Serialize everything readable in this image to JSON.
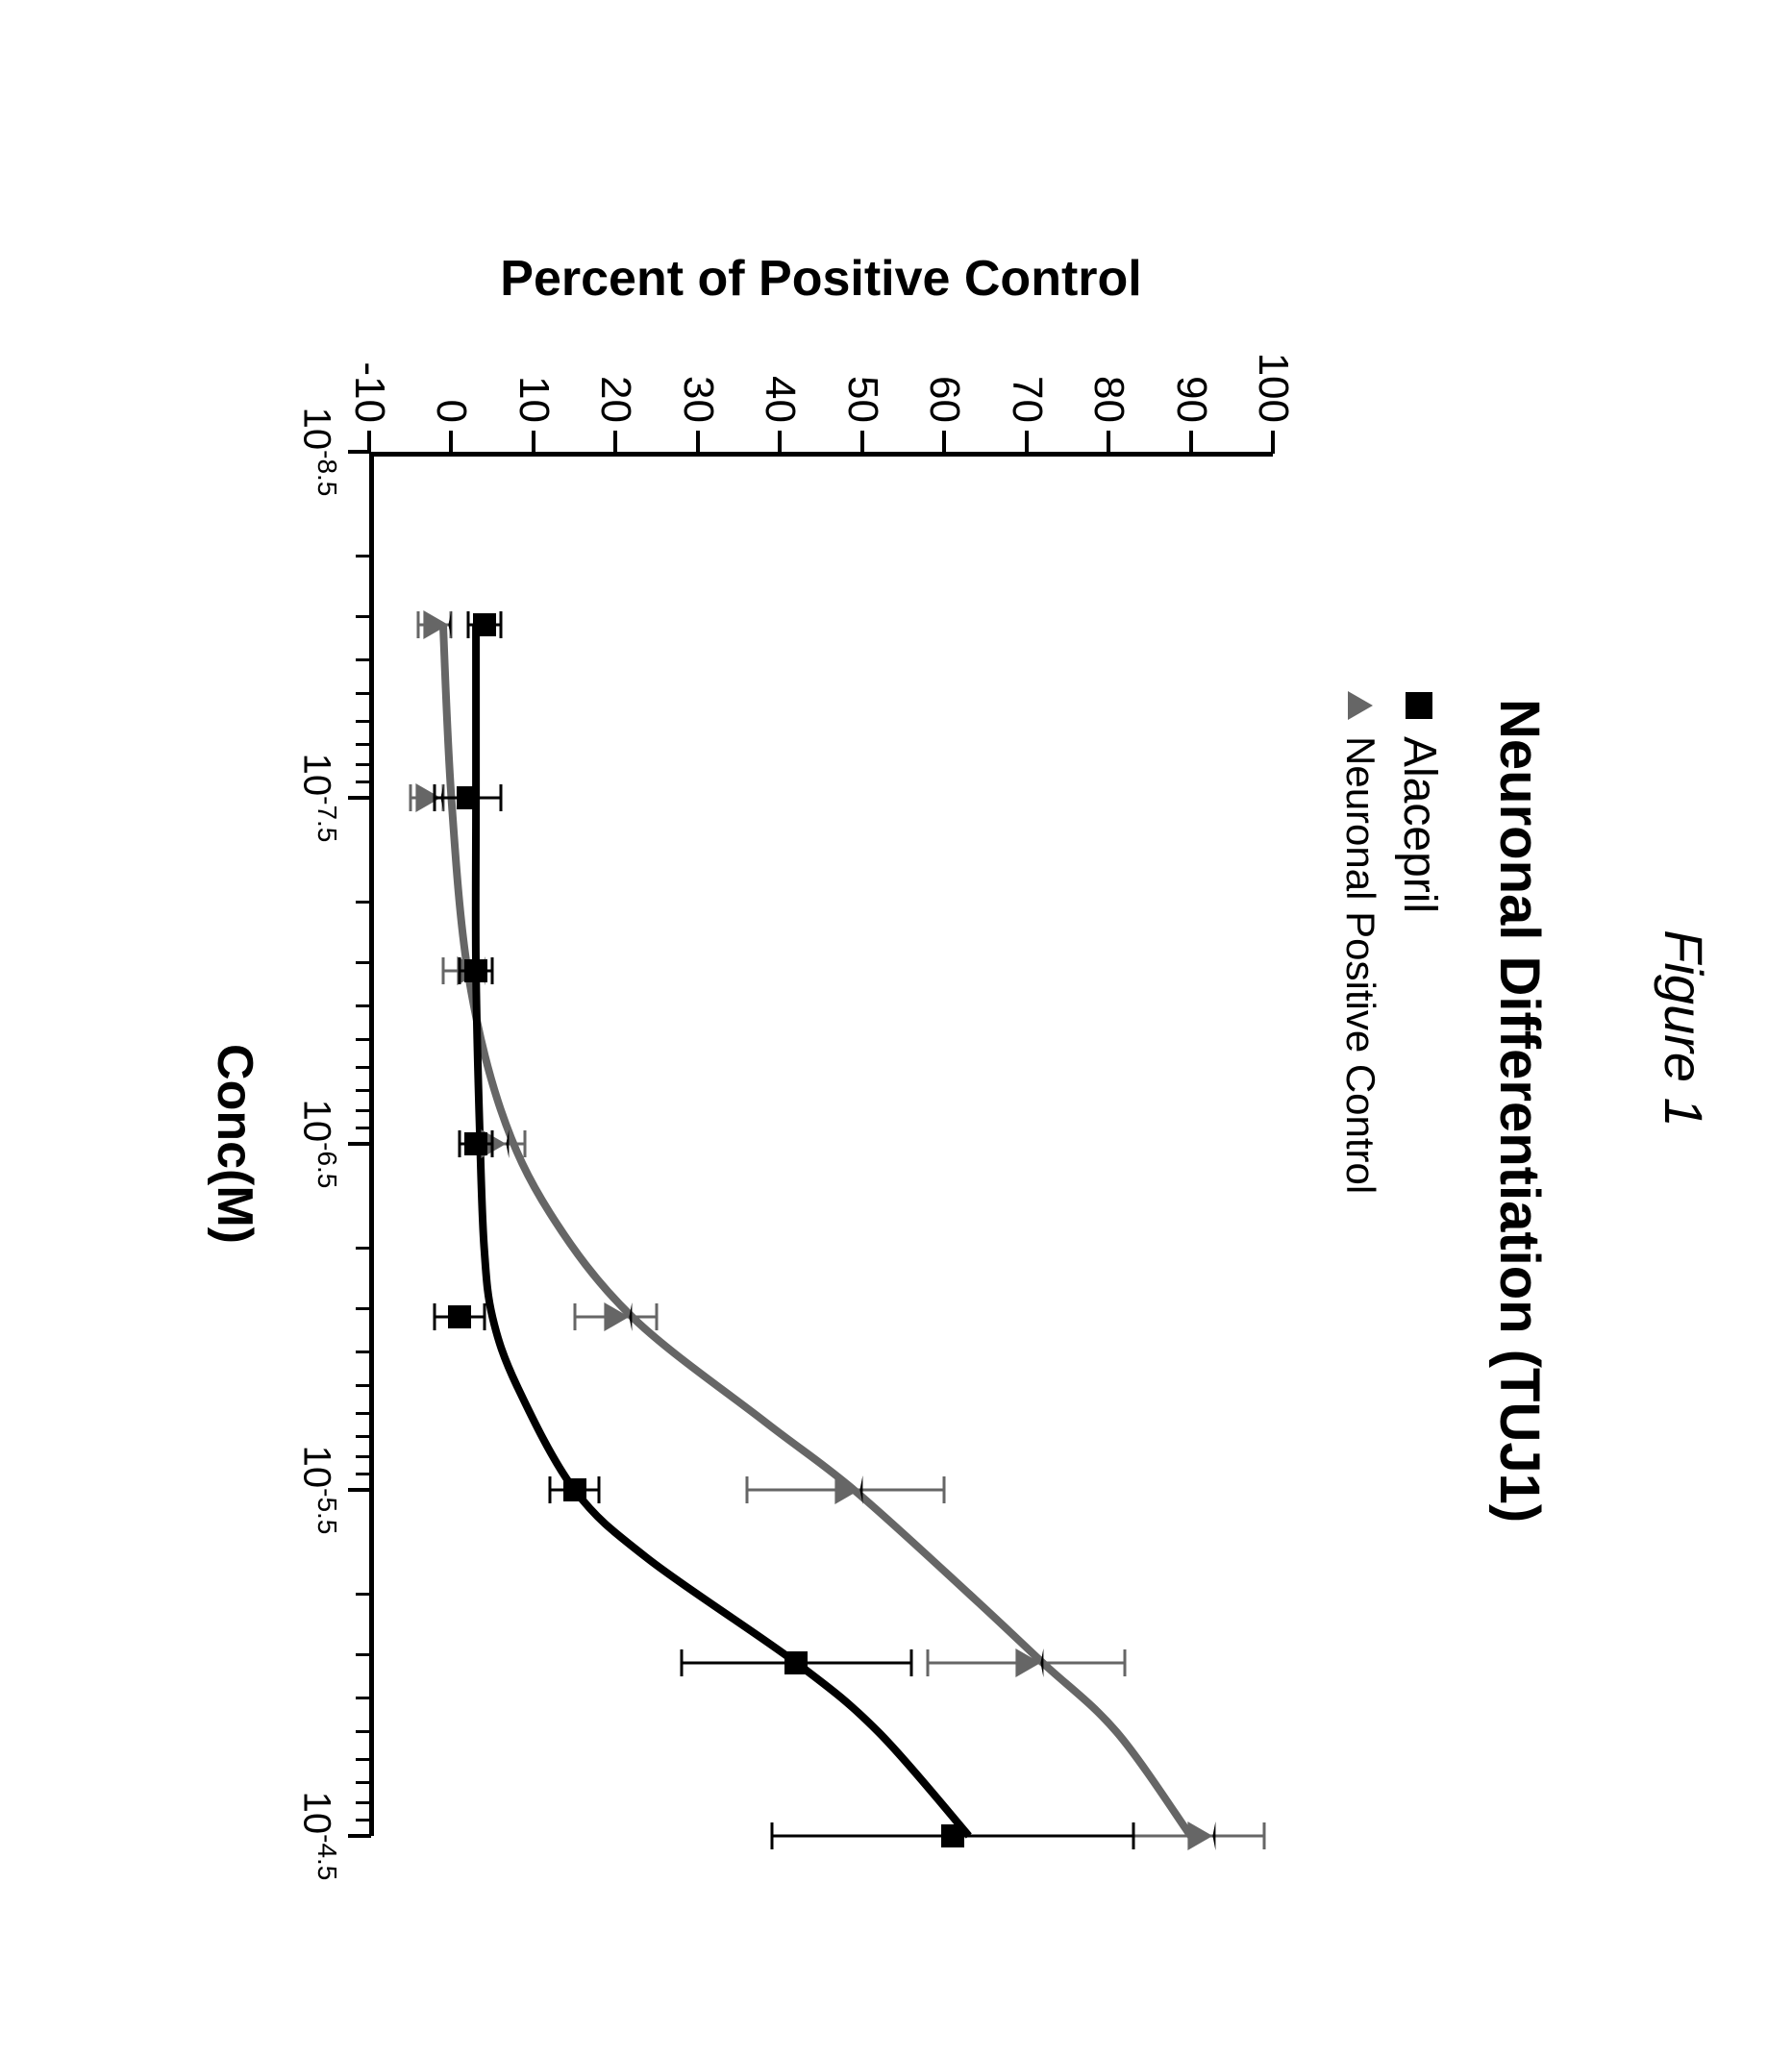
{
  "figure": {
    "label": "Figure 1",
    "label_fontsize": 56,
    "title": "Neuronal Differentiation (TUJ1)",
    "title_fontsize": 58
  },
  "legend": {
    "items": [
      {
        "marker": "square",
        "label": "Alacepril",
        "color": "#000000",
        "fontsize": 48
      },
      {
        "marker": "triangle",
        "label": "Neuronal Positive Control",
        "color": "#666666",
        "fontsize": 42
      }
    ]
  },
  "axes": {
    "y": {
      "label": "Percent of Positive Control",
      "label_fontsize": 52,
      "min": -10,
      "max": 100,
      "ticks": [
        -10,
        0,
        10,
        20,
        30,
        40,
        50,
        60,
        70,
        80,
        90,
        100
      ],
      "tick_fontsize": 44
    },
    "x": {
      "label": "Conc(M)",
      "label_fontsize": 52,
      "log": true,
      "min": -8.5,
      "max": -4.5,
      "major_ticks": [
        -8.5,
        -7.5,
        -6.5,
        -5.5,
        -4.5
      ],
      "major_tick_labels": [
        "10<sup>-8.5</sup>",
        "10<sup>-7.5</sup>",
        "10<sup>-6.5</sup>",
        "10<sup>-5.5</sup>",
        "10<sup>-4.5</sup>"
      ],
      "minor_ticks": [
        -8.19897,
        -8.02288,
        -7.89794,
        -7.80103,
        -7.72185,
        -7.6549,
        -7.59691,
        -7.54576,
        -7.19897,
        -7.02288,
        -6.89794,
        -6.80103,
        -6.72185,
        -6.6549,
        -6.59691,
        -6.54576,
        -6.19897,
        -6.02288,
        -5.89794,
        -5.80103,
        -5.72185,
        -5.6549,
        -5.59691,
        -5.54576,
        -5.19897,
        -5.02288,
        -4.89794,
        -4.80103,
        -4.72185,
        -4.6549,
        -4.59691,
        -4.54576
      ],
      "tick_fontsize": 40
    }
  },
  "styling": {
    "background_color": "#ffffff",
    "axis_color": "#000000",
    "axis_width": 5,
    "series1_color": "#000000",
    "series1_line_width": 8,
    "series2_color": "#666666",
    "series2_line_width": 8,
    "error_bar_width": 3,
    "error_cap_width": 28,
    "marker_size": 24,
    "triangle_size": 26
  },
  "series": {
    "alacepril": {
      "type": "line",
      "color": "#000000",
      "marker": "square",
      "points": [
        {
          "x": -8.0,
          "y": 4,
          "err": 2
        },
        {
          "x": -7.5,
          "y": 2,
          "err": 4
        },
        {
          "x": -7.0,
          "y": 3,
          "err": 2
        },
        {
          "x": -6.5,
          "y": 3,
          "err": 2
        },
        {
          "x": -6.0,
          "y": 1,
          "err": 3
        },
        {
          "x": -5.5,
          "y": 15,
          "err": 3
        },
        {
          "x": -5.0,
          "y": 42,
          "err": 14
        },
        {
          "x": -4.5,
          "y": 61,
          "err": 22
        }
      ],
      "curve": [
        {
          "x": -8.0,
          "y": 3
        },
        {
          "x": -7.5,
          "y": 3
        },
        {
          "x": -7.0,
          "y": 3
        },
        {
          "x": -6.5,
          "y": 3.5
        },
        {
          "x": -6.2,
          "y": 4
        },
        {
          "x": -6.0,
          "y": 5
        },
        {
          "x": -5.8,
          "y": 8
        },
        {
          "x": -5.5,
          "y": 15
        },
        {
          "x": -5.3,
          "y": 24
        },
        {
          "x": -5.0,
          "y": 42
        },
        {
          "x": -4.8,
          "y": 52
        },
        {
          "x": -4.5,
          "y": 63
        }
      ]
    },
    "positive_control": {
      "type": "line",
      "color": "#666666",
      "marker": "triangle",
      "points": [
        {
          "x": -8.0,
          "y": -2,
          "err": 2
        },
        {
          "x": -7.5,
          "y": -3,
          "err": 2
        },
        {
          "x": -7.0,
          "y": 2,
          "err": 3
        },
        {
          "x": -6.5,
          "y": 5,
          "err": 4
        },
        {
          "x": -6.0,
          "y": 20,
          "err": 5
        },
        {
          "x": -5.5,
          "y": 48,
          "err": 12
        },
        {
          "x": -5.0,
          "y": 70,
          "err": 12
        },
        {
          "x": -4.5,
          "y": 91,
          "err": 8
        }
      ],
      "curve": [
        {
          "x": -8.0,
          "y": -1
        },
        {
          "x": -7.5,
          "y": 0
        },
        {
          "x": -7.0,
          "y": 2
        },
        {
          "x": -6.6,
          "y": 6
        },
        {
          "x": -6.3,
          "y": 12
        },
        {
          "x": -6.0,
          "y": 22
        },
        {
          "x": -5.7,
          "y": 38
        },
        {
          "x": -5.5,
          "y": 49
        },
        {
          "x": -5.2,
          "y": 63
        },
        {
          "x": -5.0,
          "y": 72
        },
        {
          "x": -4.8,
          "y": 81
        },
        {
          "x": -4.5,
          "y": 90
        }
      ]
    }
  }
}
